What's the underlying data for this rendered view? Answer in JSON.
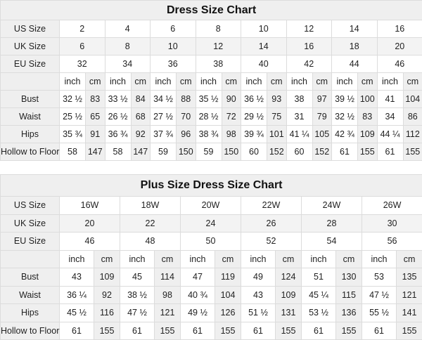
{
  "tables": [
    {
      "title": "Dress Size Chart",
      "size_rows": [
        {
          "label": "US Size",
          "values": [
            "2",
            "4",
            "6",
            "8",
            "10",
            "12",
            "14",
            "16"
          ]
        },
        {
          "label": "UK Size",
          "values": [
            "6",
            "8",
            "10",
            "12",
            "14",
            "16",
            "18",
            "20"
          ]
        },
        {
          "label": "EU Size",
          "values": [
            "32",
            "34",
            "36",
            "38",
            "40",
            "42",
            "44",
            "46"
          ]
        }
      ],
      "units": [
        "inch",
        "cm"
      ],
      "measure_rows": [
        {
          "label": "Bust",
          "values": [
            "32 ½",
            "83",
            "33 ½",
            "84",
            "34 ½",
            "88",
            "35 ½",
            "90",
            "36 ½",
            "93",
            "38",
            "97",
            "39 ½",
            "100",
            "41",
            "104"
          ]
        },
        {
          "label": "Waist",
          "values": [
            "25 ½",
            "65",
            "26 ½",
            "68",
            "27 ½",
            "70",
            "28 ½",
            "72",
            "29 ½",
            "75",
            "31",
            "79",
            "32 ½",
            "83",
            "34",
            "86"
          ]
        },
        {
          "label": "Hips",
          "values": [
            "35 ¾",
            "91",
            "36 ¾",
            "92",
            "37 ¾",
            "96",
            "38 ¾",
            "98",
            "39 ¾",
            "101",
            "41 ¼",
            "105",
            "42 ¾",
            "109",
            "44 ¼",
            "112"
          ]
        },
        {
          "label": "Hollow to Floor",
          "values": [
            "58",
            "147",
            "58",
            "147",
            "59",
            "150",
            "59",
            "150",
            "60",
            "152",
            "60",
            "152",
            "61",
            "155",
            "61",
            "155"
          ]
        }
      ]
    },
    {
      "title": "Plus Size Dress Size Chart",
      "size_rows": [
        {
          "label": "US Size",
          "values": [
            "16W",
            "18W",
            "20W",
            "22W",
            "24W",
            "26W"
          ]
        },
        {
          "label": "UK Size",
          "values": [
            "20",
            "22",
            "24",
            "26",
            "28",
            "30"
          ]
        },
        {
          "label": "EU Size",
          "values": [
            "46",
            "48",
            "50",
            "52",
            "54",
            "56"
          ]
        }
      ],
      "units": [
        "inch",
        "cm"
      ],
      "measure_rows": [
        {
          "label": "Bust",
          "values": [
            "43",
            "109",
            "45",
            "114",
            "47",
            "119",
            "49",
            "124",
            "51",
            "130",
            "53",
            "135"
          ]
        },
        {
          "label": "Waist",
          "values": [
            "36 ¼",
            "92",
            "38 ½",
            "98",
            "40 ¾",
            "104",
            "43",
            "109",
            "45 ¼",
            "115",
            "47 ½",
            "121"
          ]
        },
        {
          "label": "Hips",
          "values": [
            "45 ½",
            "116",
            "47 ½",
            "121",
            "49 ½",
            "126",
            "51 ½",
            "131",
            "53 ½",
            "136",
            "55 ½",
            "141"
          ]
        },
        {
          "label": "Hollow to Floor",
          "values": [
            "61",
            "155",
            "61",
            "155",
            "61",
            "155",
            "61",
            "155",
            "61",
            "155",
            "61",
            "155"
          ]
        }
      ]
    }
  ]
}
